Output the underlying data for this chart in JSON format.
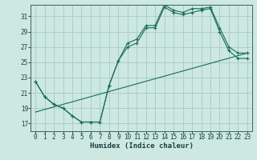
{
  "xlabel": "Humidex (Indice chaleur)",
  "background_color": "#cce8e0",
  "grid_color": "#aacfc8",
  "line_color": "#1a6b5a",
  "xlim": [
    -0.5,
    23.5
  ],
  "ylim": [
    16.0,
    32.5
  ],
  "xticks": [
    0,
    1,
    2,
    3,
    4,
    5,
    6,
    7,
    8,
    9,
    10,
    11,
    12,
    13,
    14,
    15,
    16,
    17,
    18,
    19,
    20,
    21,
    22,
    23
  ],
  "yticks": [
    17,
    19,
    21,
    23,
    25,
    27,
    29,
    31
  ],
  "series1_x": [
    0,
    1,
    2,
    3,
    4,
    5,
    6,
    7,
    8,
    9,
    10,
    11,
    12,
    13,
    14,
    15,
    16,
    17,
    18,
    19,
    20,
    21,
    22,
    23
  ],
  "series1_y": [
    22.5,
    20.5,
    19.5,
    19.0,
    18.0,
    17.2,
    17.2,
    17.2,
    22.0,
    25.2,
    27.0,
    27.5,
    29.5,
    29.5,
    32.2,
    31.5,
    31.2,
    31.5,
    31.8,
    32.0,
    29.0,
    26.5,
    25.5,
    25.5
  ],
  "series2_x": [
    0,
    1,
    2,
    3,
    4,
    5,
    6,
    7,
    8,
    9,
    10,
    11,
    12,
    13,
    14,
    15,
    16,
    17,
    18,
    19,
    20,
    21,
    22,
    23
  ],
  "series2_y": [
    22.5,
    20.5,
    19.5,
    19.0,
    18.0,
    17.2,
    17.2,
    17.2,
    22.0,
    25.2,
    27.5,
    28.0,
    29.8,
    29.8,
    32.5,
    31.8,
    31.5,
    32.0,
    32.0,
    32.2,
    29.5,
    27.0,
    26.2,
    26.2
  ],
  "series3_x": [
    0,
    23
  ],
  "series3_y": [
    18.5,
    26.2
  ],
  "tick_fontsize": 5.5,
  "label_fontsize": 6.5
}
